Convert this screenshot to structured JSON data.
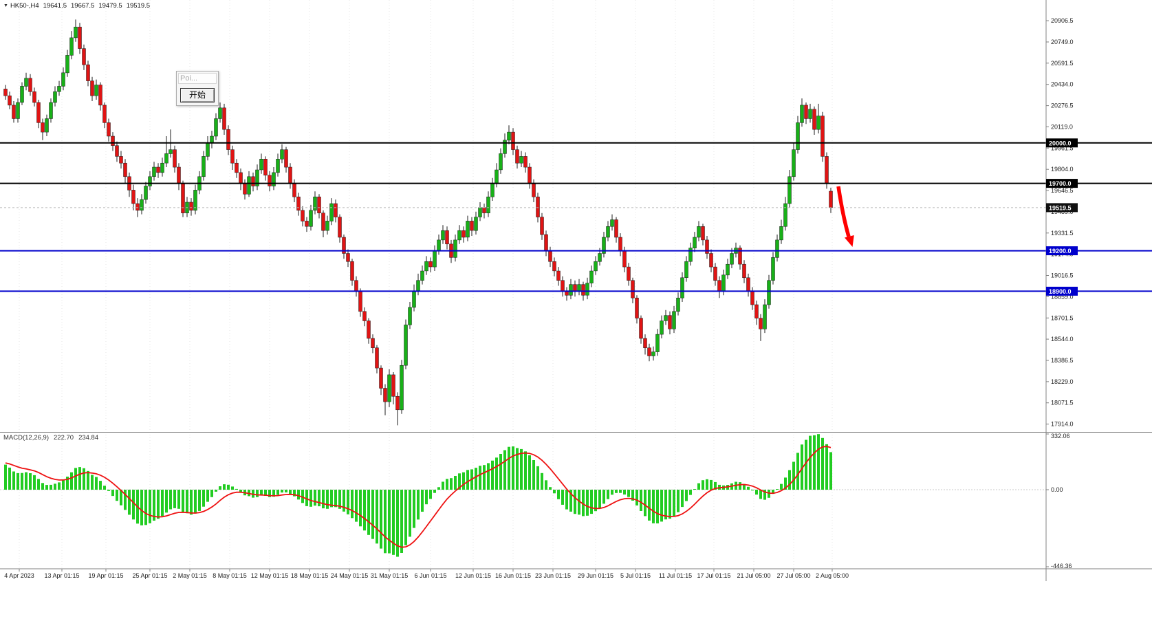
{
  "header": {
    "collapse_icon": "▼",
    "symbol_period": "HK50-,H4",
    "open": "19641.5",
    "high": "19667.5",
    "low": "19479.5",
    "close": "19519.5"
  },
  "dialog": {
    "title": "Poi...",
    "button_label": "开始"
  },
  "macd_readout": {
    "label": "MACD(12,26,9)",
    "main_value": "222.70",
    "signal_value": "234.84"
  },
  "colors": {
    "background": "#ffffff",
    "candle_up": "#18b018",
    "candle_down": "#e01414",
    "candle_outline": "#1c1c1c",
    "macd_hist": "#22cc22",
    "macd_signal": "#ee1111",
    "level_black": "#000000",
    "level_blue": "#0000cc",
    "arrow": "#ff0000",
    "axis_text": "#222222"
  },
  "chart_data": {
    "type": "candlestick",
    "symbol": "HK50-",
    "timeframe": "H4",
    "title": "HK50- H4 candlestick chart with MACD(12,26,9) sub-window",
    "price_axis": [
      "20906.5",
      "20749.0",
      "20591.5",
      "20434.0",
      "20276.5",
      "20119.0",
      "19961.5",
      "19804.0",
      "19646.5",
      "19489.0",
      "19331.5",
      "19174.0",
      "19016.5",
      "18859.0",
      "18701.5",
      "18544.0",
      "18386.5",
      "18229.0",
      "18071.5",
      "17914.0"
    ],
    "time_axis": [
      "4 Apr 2023",
      "13 Apr 01:15",
      "19 Apr 01:15",
      "25 Apr 01:15",
      "2 May 01:15",
      "8 May 01:15",
      "12 May 01:15",
      "18 May 01:15",
      "24 May 01:15",
      "31 May 01:15",
      "6 Jun 01:15",
      "12 Jun 01:15",
      "16 Jun 01:15",
      "23 Jun 01:15",
      "29 Jun 01:15",
      "5 Jul 01:15",
      "11 Jul 01:15",
      "17 Jul 01:15",
      "21 Jul 05:00",
      "27 Jul 05:00",
      "2 Aug 05:00"
    ],
    "levels": [
      {
        "price": 20000.0,
        "label": "20000.0",
        "color": "#000000"
      },
      {
        "price": 19700.0,
        "label": "19700.0",
        "color": "#000000"
      },
      {
        "price": 19200.0,
        "label": "19200.0",
        "color": "#0000cc"
      },
      {
        "price": 18900.0,
        "label": "18900.0",
        "color": "#0000cc"
      }
    ],
    "current_price": {
      "value": 19519.5,
      "label": "19519.5"
    },
    "indicator": {
      "name": "MACD(12,26,9)",
      "main": "222.70",
      "signal": "234.84",
      "scale_max": "332.06",
      "scale_zero": "0.00",
      "scale_min": "-446.36"
    },
    "candles": [
      [
        20400,
        20430,
        20320,
        20350
      ],
      [
        20350,
        20380,
        20250,
        20280
      ],
      [
        20280,
        20310,
        20150,
        20180
      ],
      [
        20180,
        20330,
        20150,
        20300
      ],
      [
        20300,
        20450,
        20280,
        20420
      ],
      [
        20420,
        20520,
        20390,
        20480
      ],
      [
        20480,
        20510,
        20350,
        20380
      ],
      [
        20380,
        20410,
        20270,
        20300
      ],
      [
        20300,
        20320,
        20110,
        20150
      ],
      [
        20150,
        20180,
        20020,
        20080
      ],
      [
        20080,
        20210,
        20050,
        20180
      ],
      [
        20180,
        20330,
        20150,
        20300
      ],
      [
        20300,
        20420,
        20270,
        20380
      ],
      [
        20380,
        20460,
        20350,
        20420
      ],
      [
        20420,
        20560,
        20390,
        20520
      ],
      [
        20520,
        20690,
        20490,
        20650
      ],
      [
        20650,
        20830,
        20620,
        20780
      ],
      [
        20780,
        20915,
        20750,
        20860
      ],
      [
        20860,
        20890,
        20660,
        20700
      ],
      [
        20700,
        20730,
        20540,
        20580
      ],
      [
        20580,
        20610,
        20420,
        20460
      ],
      [
        20460,
        20490,
        20310,
        20350
      ],
      [
        20350,
        20470,
        20320,
        20430
      ],
      [
        20430,
        20450,
        20240,
        20280
      ],
      [
        20280,
        20300,
        20110,
        20150
      ],
      [
        20150,
        20180,
        20010,
        20050
      ],
      [
        20050,
        20080,
        19940,
        19980
      ],
      [
        19980,
        20010,
        19860,
        19900
      ],
      [
        19900,
        19940,
        19810,
        19850
      ],
      [
        19850,
        19880,
        19700,
        19750
      ],
      [
        19750,
        19780,
        19600,
        19650
      ],
      [
        19650,
        19690,
        19500,
        19550
      ],
      [
        19550,
        19590,
        19450,
        19500
      ],
      [
        19500,
        19620,
        19470,
        19580
      ],
      [
        19580,
        19710,
        19550,
        19680
      ],
      [
        19680,
        19790,
        19650,
        19750
      ],
      [
        19750,
        19860,
        19720,
        19820
      ],
      [
        19820,
        19850,
        19740,
        19780
      ],
      [
        19780,
        19890,
        19750,
        19850
      ],
      [
        19850,
        20050,
        19820,
        19920
      ],
      [
        19920,
        20100,
        19890,
        19950
      ],
      [
        19950,
        19980,
        19780,
        19820
      ],
      [
        19820,
        19850,
        19650,
        19700
      ],
      [
        19700,
        19720,
        19450,
        19480
      ],
      [
        19480,
        19600,
        19450,
        19560
      ],
      [
        19560,
        19590,
        19460,
        19500
      ],
      [
        19500,
        19690,
        19470,
        19650
      ],
      [
        19650,
        19790,
        19620,
        19750
      ],
      [
        19750,
        19940,
        19720,
        19900
      ],
      [
        19900,
        20050,
        19870,
        20000
      ],
      [
        20000,
        20090,
        19960,
        20050
      ],
      [
        20050,
        20220,
        20020,
        20180
      ],
      [
        20180,
        20300,
        20150,
        20260
      ],
      [
        20260,
        20290,
        20060,
        20100
      ],
      [
        20100,
        20130,
        19910,
        19950
      ],
      [
        19950,
        19980,
        19800,
        19850
      ],
      [
        19850,
        19880,
        19740,
        19780
      ],
      [
        19780,
        19810,
        19650,
        19700
      ],
      [
        19700,
        19730,
        19580,
        19620
      ],
      [
        19620,
        19790,
        19600,
        19750
      ],
      [
        19750,
        19780,
        19640,
        19680
      ],
      [
        19680,
        19840,
        19650,
        19800
      ],
      [
        19800,
        19920,
        19770,
        19880
      ],
      [
        19880,
        19900,
        19720,
        19760
      ],
      [
        19760,
        19790,
        19640,
        19680
      ],
      [
        19680,
        19820,
        19650,
        19780
      ],
      [
        19780,
        19920,
        19750,
        19880
      ],
      [
        19880,
        19990,
        19850,
        19950
      ],
      [
        19950,
        19970,
        19780,
        19820
      ],
      [
        19820,
        19850,
        19660,
        19700
      ],
      [
        19700,
        19730,
        19560,
        19600
      ],
      [
        19600,
        19630,
        19460,
        19500
      ],
      [
        19500,
        19530,
        19380,
        19420
      ],
      [
        19420,
        19450,
        19340,
        19380
      ],
      [
        19380,
        19540,
        19350,
        19500
      ],
      [
        19500,
        19640,
        19470,
        19600
      ],
      [
        19600,
        19620,
        19440,
        19480
      ],
      [
        19480,
        19500,
        19300,
        19350
      ],
      [
        19350,
        19460,
        19320,
        19420
      ],
      [
        19420,
        19590,
        19390,
        19550
      ],
      [
        19550,
        19580,
        19410,
        19450
      ],
      [
        19450,
        19470,
        19260,
        19300
      ],
      [
        19300,
        19320,
        19140,
        19180
      ],
      [
        19180,
        19210,
        19080,
        19120
      ],
      [
        19120,
        19140,
        18940,
        18980
      ],
      [
        18980,
        19010,
        18860,
        18900
      ],
      [
        18900,
        18920,
        18710,
        18750
      ],
      [
        18750,
        18780,
        18640,
        18680
      ],
      [
        18680,
        18700,
        18510,
        18550
      ],
      [
        18550,
        18580,
        18440,
        18480
      ],
      [
        18480,
        18500,
        18290,
        18330
      ],
      [
        18330,
        18350,
        18130,
        18180
      ],
      [
        18180,
        18210,
        17980,
        18080
      ],
      [
        18080,
        18320,
        18040,
        18280
      ],
      [
        18280,
        18300,
        18060,
        18120
      ],
      [
        18120,
        18150,
        17905,
        18020
      ],
      [
        18020,
        18390,
        17990,
        18350
      ],
      [
        18350,
        18690,
        18320,
        18650
      ],
      [
        18650,
        18820,
        18620,
        18780
      ],
      [
        18780,
        18950,
        18750,
        18900
      ],
      [
        18900,
        19030,
        18870,
        18980
      ],
      [
        18980,
        19090,
        18950,
        19050
      ],
      [
        19050,
        19160,
        19020,
        19120
      ],
      [
        19120,
        19150,
        19040,
        19080
      ],
      [
        19080,
        19240,
        19050,
        19200
      ],
      [
        19200,
        19320,
        19170,
        19280
      ],
      [
        19280,
        19390,
        19250,
        19350
      ],
      [
        19350,
        19380,
        19210,
        19250
      ],
      [
        19250,
        19280,
        19110,
        19150
      ],
      [
        19150,
        19320,
        19120,
        19280
      ],
      [
        19280,
        19390,
        19250,
        19350
      ],
      [
        19350,
        19380,
        19260,
        19300
      ],
      [
        19300,
        19460,
        19270,
        19420
      ],
      [
        19420,
        19450,
        19310,
        19350
      ],
      [
        19350,
        19490,
        19320,
        19450
      ],
      [
        19450,
        19560,
        19420,
        19520
      ],
      [
        19520,
        19550,
        19440,
        19480
      ],
      [
        19480,
        19640,
        19450,
        19600
      ],
      [
        19600,
        19740,
        19570,
        19700
      ],
      [
        19700,
        19850,
        19670,
        19800
      ],
      [
        19800,
        19960,
        19770,
        19920
      ],
      [
        19920,
        20070,
        19890,
        20020
      ],
      [
        20020,
        20130,
        19990,
        20080
      ],
      [
        20080,
        20110,
        19910,
        19950
      ],
      [
        19950,
        19980,
        19810,
        19850
      ],
      [
        19850,
        19940,
        19820,
        19900
      ],
      [
        19900,
        19930,
        19780,
        19820
      ],
      [
        19820,
        19850,
        19660,
        19700
      ],
      [
        19700,
        19730,
        19560,
        19600
      ],
      [
        19600,
        19630,
        19410,
        19450
      ],
      [
        19450,
        19480,
        19280,
        19320
      ],
      [
        19320,
        19350,
        19160,
        19200
      ],
      [
        19200,
        19230,
        19080,
        19120
      ],
      [
        19120,
        19150,
        19010,
        19050
      ],
      [
        19050,
        19080,
        18940,
        18980
      ],
      [
        18980,
        19010,
        18860,
        18900
      ],
      [
        18900,
        18930,
        18830,
        18870
      ],
      [
        18870,
        18990,
        18840,
        18950
      ],
      [
        18950,
        18980,
        18860,
        18900
      ],
      [
        18900,
        18990,
        18870,
        18950
      ],
      [
        18950,
        18970,
        18830,
        18870
      ],
      [
        18870,
        19000,
        18840,
        18960
      ],
      [
        18960,
        19090,
        18930,
        19050
      ],
      [
        19050,
        19160,
        19020,
        19120
      ],
      [
        19120,
        19220,
        19090,
        19180
      ],
      [
        19180,
        19340,
        19150,
        19300
      ],
      [
        19300,
        19420,
        19270,
        19380
      ],
      [
        19380,
        19470,
        19350,
        19430
      ],
      [
        19430,
        19450,
        19260,
        19300
      ],
      [
        19300,
        19330,
        19160,
        19200
      ],
      [
        19200,
        19230,
        19040,
        19080
      ],
      [
        19080,
        19110,
        18940,
        18980
      ],
      [
        18980,
        19000,
        18810,
        18850
      ],
      [
        18850,
        18870,
        18660,
        18700
      ],
      [
        18700,
        18720,
        18510,
        18550
      ],
      [
        18550,
        18580,
        18430,
        18480
      ],
      [
        18480,
        18510,
        18380,
        18420
      ],
      [
        18420,
        18490,
        18385,
        18450
      ],
      [
        18450,
        18620,
        18420,
        18580
      ],
      [
        18580,
        18720,
        18550,
        18680
      ],
      [
        18680,
        18760,
        18650,
        18720
      ],
      [
        18720,
        18750,
        18580,
        18620
      ],
      [
        18620,
        18790,
        18590,
        18750
      ],
      [
        18750,
        18890,
        18720,
        18850
      ],
      [
        18850,
        19040,
        18820,
        19000
      ],
      [
        19000,
        19160,
        18970,
        19120
      ],
      [
        19120,
        19260,
        19090,
        19220
      ],
      [
        19220,
        19340,
        19190,
        19300
      ],
      [
        19300,
        19420,
        19270,
        19380
      ],
      [
        19380,
        19400,
        19240,
        19280
      ],
      [
        19280,
        19310,
        19140,
        19180
      ],
      [
        19180,
        19210,
        19040,
        19080
      ],
      [
        19080,
        19110,
        18940,
        18980
      ],
      [
        18980,
        19010,
        18850,
        18900
      ],
      [
        18900,
        19060,
        18870,
        19020
      ],
      [
        19020,
        19140,
        18990,
        19100
      ],
      [
        19100,
        19220,
        19070,
        19180
      ],
      [
        19180,
        19260,
        19150,
        19220
      ],
      [
        19220,
        19240,
        19060,
        19100
      ],
      [
        19100,
        19130,
        18960,
        19000
      ],
      [
        19000,
        19030,
        18860,
        18900
      ],
      [
        18900,
        18930,
        18760,
        18800
      ],
      [
        18800,
        18830,
        18650,
        18700
      ],
      [
        18700,
        18730,
        18530,
        18620
      ],
      [
        18620,
        18840,
        18590,
        18800
      ],
      [
        18800,
        19020,
        18770,
        18980
      ],
      [
        18980,
        19190,
        18950,
        19150
      ],
      [
        19150,
        19320,
        19120,
        19280
      ],
      [
        19280,
        19430,
        19250,
        19380
      ],
      [
        19380,
        19600,
        19350,
        19550
      ],
      [
        19550,
        19800,
        19520,
        19750
      ],
      [
        19750,
        20000,
        19720,
        19950
      ],
      [
        19950,
        20200,
        19920,
        20150
      ],
      [
        20150,
        20330,
        20120,
        20280
      ],
      [
        20280,
        20300,
        20140,
        20180
      ],
      [
        20180,
        20290,
        20150,
        20250
      ],
      [
        20250,
        20270,
        20060,
        20100
      ],
      [
        20100,
        20290,
        20070,
        20200
      ],
      [
        20200,
        20230,
        19860,
        19900
      ],
      [
        19900,
        19930,
        19660,
        19700
      ],
      [
        19641.5,
        19667.5,
        19479.5,
        19519.5
      ]
    ]
  }
}
